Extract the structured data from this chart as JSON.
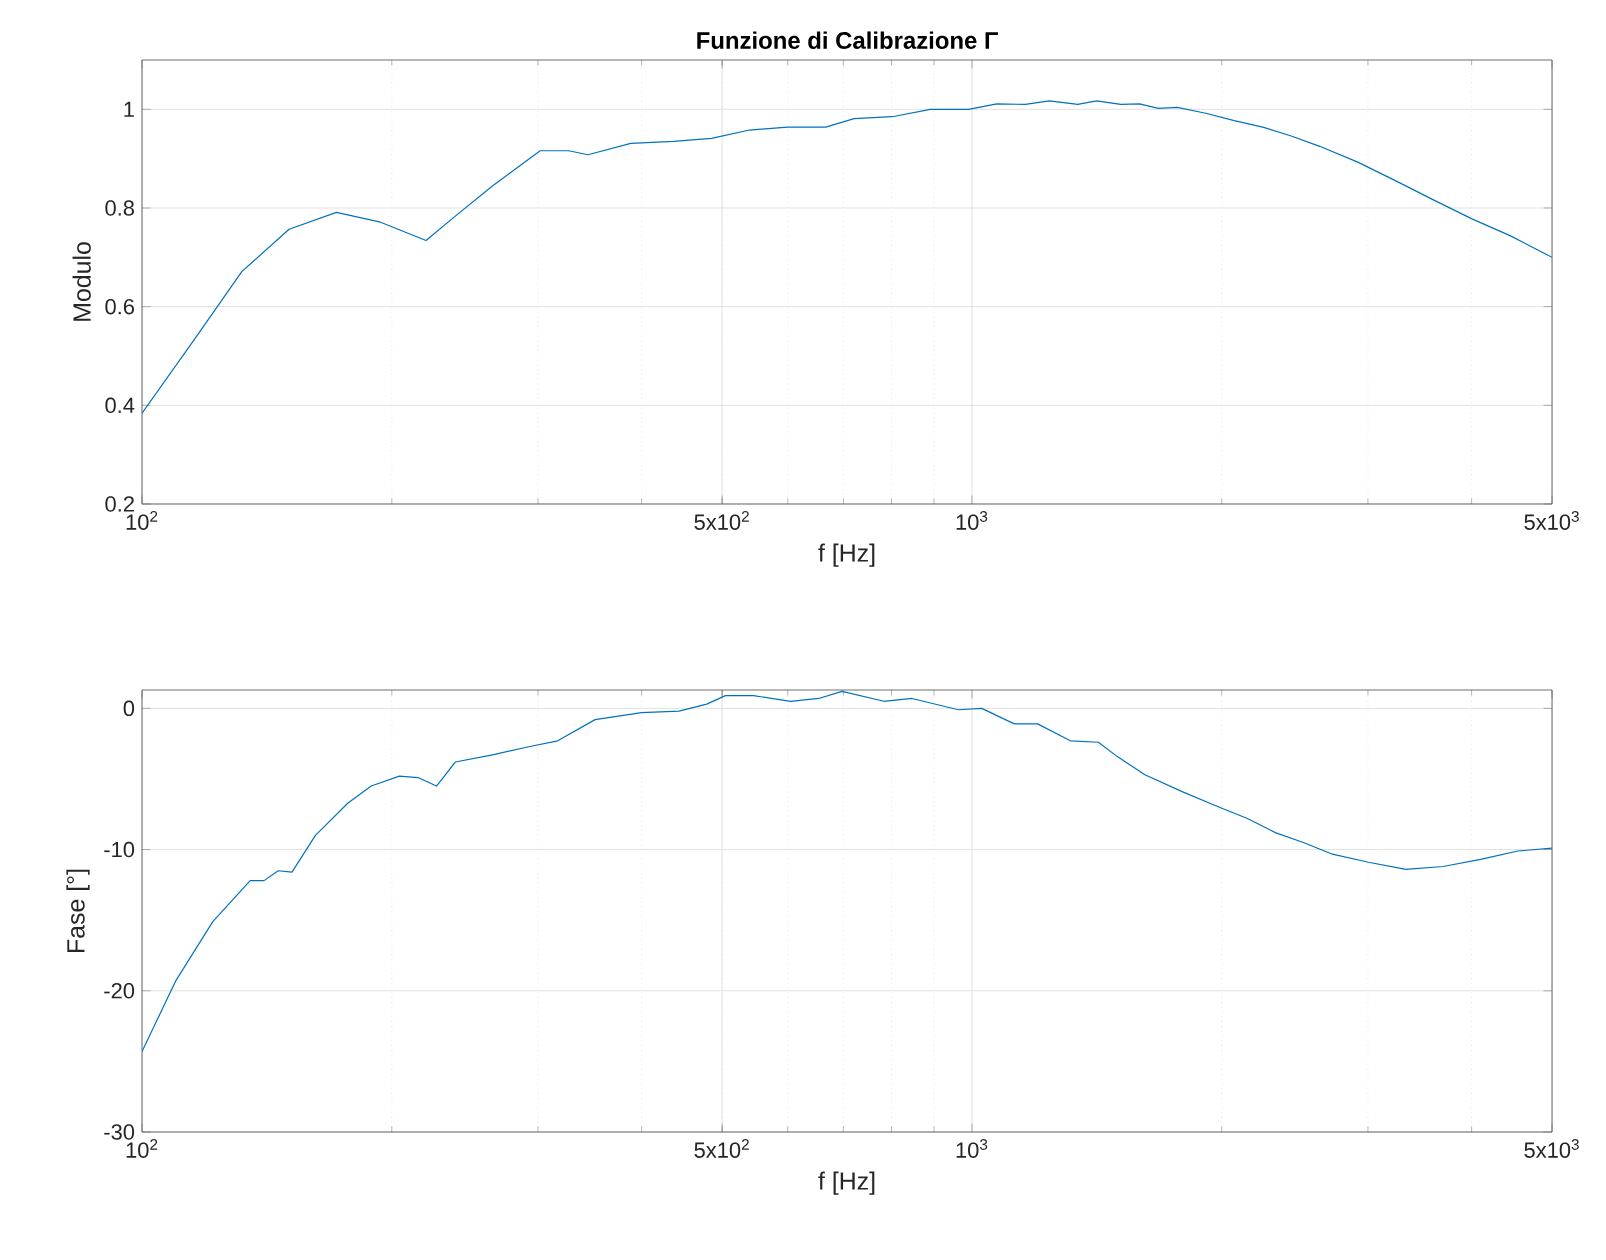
{
  "chart_data": [
    {
      "type": "line",
      "title": "Funzione di Calibrazione Γ",
      "xlabel": "f [Hz]",
      "ylabel": "Modulo",
      "log": "x",
      "grid": true,
      "color": "#0072bd",
      "xlim": [
        100,
        5000
      ],
      "xticks": [
        {
          "value": 100,
          "label": "10$^{2}$"
        },
        {
          "value": 500,
          "label": "5x10$^{2}$"
        },
        {
          "value": 1000,
          "label": "10$^{3}$"
        },
        {
          "value": 5000,
          "label": "5x10$^{3}$"
        }
      ],
      "ylim": [
        0.2,
        1.1
      ],
      "yticks": [
        0.2,
        0.4,
        0.6,
        0.8,
        1
      ],
      "x": [
        100,
        115.6,
        131.9,
        150.4,
        171.5,
        193.2,
        219.9,
        237.9,
        264.6,
        301.8,
        326.8,
        344.6,
        388.2,
        436.9,
        485.5,
        539.6,
        599.7,
        666.5,
        721.3,
        801.7,
        891.0,
        990.3,
        1071.6,
        1159.7,
        1239.4,
        1341.3,
        1413.4,
        1510.8,
        1591.9,
        1677.5,
        1767.7,
        1913.0,
        2070.3,
        2240.6,
        2424.9,
        2624.3,
        2916.6,
        3241.5,
        3602.6,
        4004.0,
        4450.0,
        5000
      ],
      "values": [
        0.384,
        0.533,
        0.671,
        0.757,
        0.791,
        0.772,
        0.734,
        0.782,
        0.845,
        0.916,
        0.916,
        0.908,
        0.931,
        0.935,
        0.941,
        0.958,
        0.964,
        0.964,
        0.981,
        0.985,
        1.0,
        1.0,
        1.011,
        1.01,
        1.017,
        1.01,
        1.017,
        1.01,
        1.011,
        1.002,
        1.004,
        0.992,
        0.977,
        0.964,
        0.946,
        0.925,
        0.893,
        0.855,
        0.816,
        0.778,
        0.744,
        0.7
      ]
    },
    {
      "type": "line",
      "xlabel": "f [Hz]",
      "ylabel": "Fase [°]",
      "log": "x",
      "grid": true,
      "color": "#0072bd",
      "xlim": [
        100,
        5000
      ],
      "xticks": [
        {
          "value": 100,
          "label": "10$^{2}$"
        },
        {
          "value": 500,
          "label": "5x10$^{2}$"
        },
        {
          "value": 1000,
          "label": "10$^{3}$"
        },
        {
          "value": 5000,
          "label": "5x10$^{3}$"
        }
      ],
      "ylim": [
        -30,
        1.3
      ],
      "yticks": [
        -30,
        -20,
        -10,
        0
      ],
      "x": [
        100,
        109.8,
        121.7,
        135.0,
        140.3,
        145.9,
        151.6,
        161.8,
        177.1,
        188.9,
        204.2,
        215.0,
        226.4,
        238.5,
        264.4,
        293.3,
        316.9,
        351.5,
        399.9,
        443.6,
        479.1,
        504.6,
        545.4,
        604.7,
        653.7,
        697.3,
        783.4,
        846.6,
        962.9,
        1027.5,
        1124.8,
        1200.0,
        1313.9,
        1420.2,
        1495.6,
        1615.9,
        1791.9,
        1987.0,
        2147.4,
        2320.7,
        2507.9,
        2709.6,
        3005.3,
        3332.2,
        3696.5,
        4100.6,
        4548.8,
        5000
      ],
      "values": [
        -24.3,
        -19.3,
        -15.1,
        -12.2,
        -12.2,
        -11.5,
        -11.6,
        -9.0,
        -6.7,
        -5.5,
        -4.8,
        -4.9,
        -5.5,
        -3.8,
        -3.3,
        -2.7,
        -2.3,
        -0.8,
        -0.3,
        -0.2,
        0.3,
        0.9,
        0.9,
        0.5,
        0.7,
        1.2,
        0.5,
        0.7,
        -0.1,
        0,
        -1.1,
        -1.1,
        -2.3,
        -2.4,
        -3.4,
        -4.7,
        -5.9,
        -7.0,
        -7.8,
        -8.8,
        -9.5,
        -10.3,
        -10.9,
        -11.4,
        -11.2,
        -10.7,
        -10.1,
        -9.9
      ]
    }
  ]
}
